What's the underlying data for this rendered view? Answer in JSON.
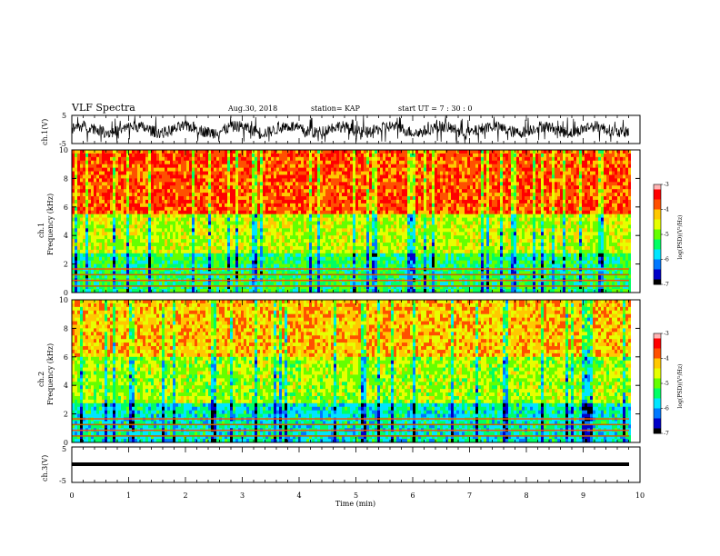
{
  "header": {
    "title": "VLF Spectra",
    "date": "Aug.30, 2018",
    "station": "station= KAP",
    "start": "start  UT =   7 : 30 : 0"
  },
  "colors": {
    "background": "#ffffff",
    "waveform": "#000000",
    "colormap": [
      "#000000",
      "#0000c8",
      "#0078ff",
      "#00e6ff",
      "#00ff64",
      "#64ff00",
      "#e6ff00",
      "#ffc800",
      "#ff5000",
      "#ff0000",
      "#ffb4b4"
    ]
  },
  "chart_data": [
    {
      "type": "line",
      "name": "ch1-waveform",
      "ylabel": "ch.1(V)",
      "ylim": [
        -5,
        5
      ],
      "yticks": [
        "5",
        "-5"
      ],
      "xlim": [
        0,
        10
      ]
    },
    {
      "type": "heatmap",
      "name": "ch1-spectrogram",
      "ylabel_top": "ch.1",
      "ylabel": "Frequency  (kHz)",
      "ylim": [
        0,
        10
      ],
      "yticks": [
        "0",
        "2",
        "4",
        "6",
        "8",
        "10"
      ],
      "xlim": [
        0,
        9.8
      ],
      "colorbar": {
        "label": "log(PSD)(V²/Hz)",
        "range": [
          -7,
          -3
        ],
        "ticks": [
          "-3",
          "-4",
          "-5",
          "-6",
          "-7"
        ]
      }
    },
    {
      "type": "heatmap",
      "name": "ch2-spectrogram",
      "ylabel_top": "ch.2",
      "ylabel": "Frequency  (kHz)",
      "ylim": [
        0,
        10
      ],
      "yticks": [
        "0",
        "2",
        "4",
        "6",
        "8",
        "10"
      ],
      "xlim": [
        0,
        9.8
      ],
      "colorbar": {
        "label": "log(PSD)(V²/Hz)",
        "range": [
          -7,
          -3
        ],
        "ticks": [
          "-3",
          "-4",
          "-5",
          "-6",
          "-7"
        ]
      }
    },
    {
      "type": "line",
      "name": "ch3-waveform",
      "ylabel": "ch.3(V)",
      "ylim": [
        -5,
        5
      ],
      "yticks": [
        "5",
        "-5"
      ],
      "x": [
        0,
        9.8
      ],
      "y": [
        0,
        0
      ],
      "xlabel": "Time  (min)",
      "xlim": [
        0,
        10
      ],
      "xticks": [
        "0",
        "1",
        "2",
        "3",
        "4",
        "5",
        "6",
        "7",
        "8",
        "9",
        "10"
      ]
    }
  ]
}
